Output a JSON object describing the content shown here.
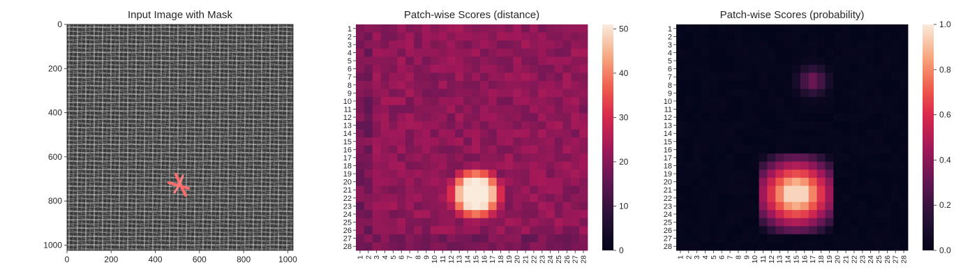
{
  "panels": [
    {
      "id": "input",
      "title": "Input Image with Mask",
      "image": {
        "size": 1024,
        "texture": "woven-fabric",
        "base_color": "#4a4a4a",
        "thread_color": "#c8c8c8",
        "mask_color": "#ff5a5a",
        "mask_shape": "x-shaped-stroke",
        "mask_center": [
          512,
          730
        ]
      },
      "xticks": [
        "0",
        "200",
        "400",
        "600",
        "800",
        "1000"
      ],
      "xtick_values": [
        0,
        200,
        400,
        600,
        800,
        1000
      ],
      "yticks": [
        "0",
        "200",
        "400",
        "600",
        "800",
        "1000"
      ],
      "ytick_values": [
        0,
        200,
        400,
        600,
        800,
        1000
      ]
    },
    {
      "id": "distance",
      "title": "Patch-wise Scores (distance)",
      "colorbar": {
        "ticks": [
          "0",
          "10",
          "20",
          "30",
          "40",
          "50"
        ],
        "tick_values": [
          0,
          10,
          20,
          30,
          40,
          50
        ],
        "vmin": 0,
        "vmax": 51
      }
    },
    {
      "id": "probability",
      "title": "Patch-wise Scores (probability)",
      "colorbar": {
        "ticks": [
          "0.0",
          "0.2",
          "0.4",
          "0.6",
          "0.8",
          "1.0"
        ],
        "tick_values": [
          0.0,
          0.2,
          0.4,
          0.6,
          0.8,
          1.0
        ],
        "vmin": 0,
        "vmax": 1
      }
    }
  ],
  "chart_data": [
    {
      "type": "heatmap",
      "title": "Patch-wise Scores (distance)",
      "grid_size": 28,
      "x_tick_labels": [
        "1",
        "2",
        "3",
        "4",
        "5",
        "6",
        "7",
        "8",
        "9",
        "10",
        "11",
        "12",
        "13",
        "14",
        "15",
        "16",
        "17",
        "18",
        "19",
        "20",
        "21",
        "22",
        "23",
        "24",
        "25",
        "26",
        "27",
        "28"
      ],
      "y_tick_labels": [
        "1",
        "2",
        "3",
        "4",
        "5",
        "6",
        "7",
        "8",
        "9",
        "10",
        "11",
        "12",
        "13",
        "14",
        "15",
        "16",
        "17",
        "18",
        "19",
        "20",
        "21",
        "22",
        "23",
        "24",
        "25",
        "26",
        "27",
        "28"
      ],
      "colormap": "rocket",
      "value_range": [
        0,
        51
      ],
      "background_value": 21,
      "hotspot": {
        "rows": [
          17,
          25
        ],
        "cols": [
          12,
          19
        ],
        "peak_rows": [
          21,
          22
        ],
        "peak_cols": [
          14,
          16
        ],
        "peak_value": 50
      },
      "notes": "Mostly uniform ~18-24 with a bright block around rows 19-24, cols 13-18"
    },
    {
      "type": "heatmap",
      "title": "Patch-wise Scores (probability)",
      "grid_size": 28,
      "x_tick_labels": [
        "1",
        "2",
        "3",
        "4",
        "5",
        "6",
        "7",
        "8",
        "9",
        "10",
        "11",
        "12",
        "13",
        "14",
        "15",
        "16",
        "17",
        "18",
        "19",
        "20",
        "21",
        "22",
        "23",
        "24",
        "25",
        "26",
        "27",
        "28"
      ],
      "y_tick_labels": [
        "1",
        "2",
        "3",
        "4",
        "5",
        "6",
        "7",
        "8",
        "9",
        "10",
        "11",
        "12",
        "13",
        "14",
        "15",
        "16",
        "17",
        "18",
        "19",
        "20",
        "21",
        "22",
        "23",
        "24",
        "25",
        "26",
        "27",
        "28"
      ],
      "colormap": "rocket",
      "value_range": [
        0,
        1
      ],
      "background_value": 0.02,
      "hotspot": {
        "rows": [
          17,
          26
        ],
        "cols": [
          11,
          19
        ],
        "peak_rows": [
          19,
          24
        ],
        "peak_cols": [
          13,
          17
        ],
        "peak_value": 0.95
      },
      "secondary_hotspot": {
        "rows": [
          4,
          10
        ],
        "cols": [
          15,
          19
        ],
        "peak_value": 0.35
      }
    }
  ]
}
